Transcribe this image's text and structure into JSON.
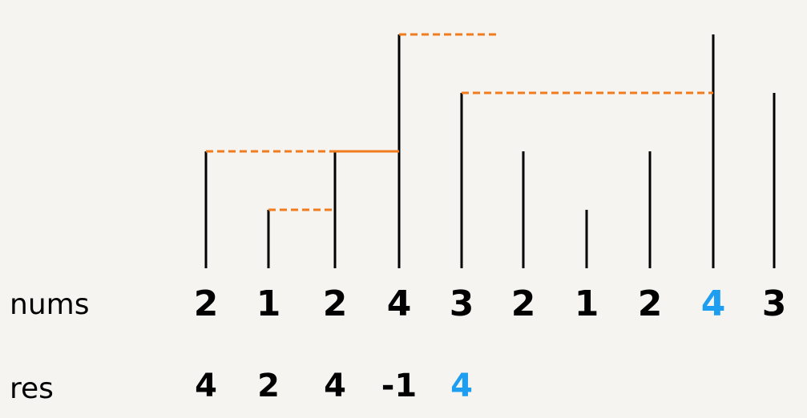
{
  "labels": {
    "nums": "nums",
    "res": "res"
  },
  "nums": [
    {
      "value": "2",
      "highlight": false
    },
    {
      "value": "1",
      "highlight": false
    },
    {
      "value": "2",
      "highlight": false
    },
    {
      "value": "4",
      "highlight": false
    },
    {
      "value": "3",
      "highlight": false
    },
    {
      "value": "2",
      "highlight": false
    },
    {
      "value": "1",
      "highlight": false
    },
    {
      "value": "2",
      "highlight": false
    },
    {
      "value": "4",
      "highlight": true
    },
    {
      "value": "3",
      "highlight": false
    }
  ],
  "res": [
    {
      "value": "4",
      "highlight": false
    },
    {
      "value": "2",
      "highlight": false
    },
    {
      "value": "4",
      "highlight": false
    },
    {
      "value": "-1",
      "highlight": false
    },
    {
      "value": "4",
      "highlight": true
    }
  ],
  "bar_heights": [
    2,
    1,
    2,
    4,
    3,
    2,
    1,
    2,
    4,
    3
  ],
  "next_greater_links": [
    {
      "from": 0,
      "to": 3
    },
    {
      "from": 1,
      "to": 2
    },
    {
      "from": 2,
      "to": 3
    },
    {
      "from": 3,
      "to": null
    },
    {
      "from": 4,
      "to": 8
    }
  ],
  "colors": {
    "bar": "#000000",
    "link": "#f07c1e",
    "highlight": "#1e9ef0",
    "text": "#000000"
  }
}
